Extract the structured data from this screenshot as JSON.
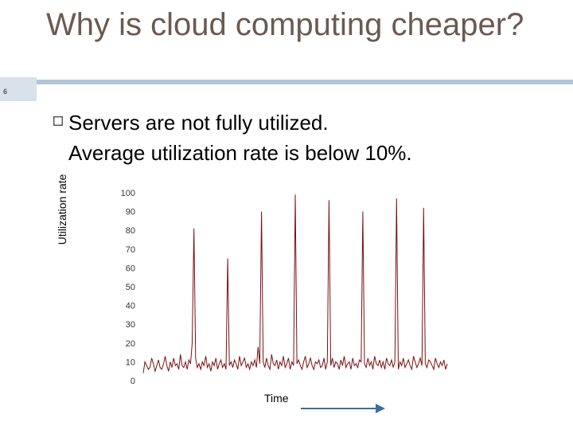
{
  "slide": {
    "number": "6",
    "title": "Why is cloud computing cheaper?",
    "bullet_lines": [
      "Servers are not fully utilized.",
      "Average utilization rate is below 10%."
    ]
  },
  "chart_data": {
    "type": "line",
    "ylabel": "Utilization rate",
    "xlabel": "Time",
    "ylim": [
      0,
      100
    ],
    "yticks": [
      0,
      10,
      20,
      30,
      40,
      50,
      60,
      70,
      80,
      90,
      100
    ],
    "grid": false,
    "series_color": "#7a1010",
    "series": [
      {
        "values": [
          4,
          10,
          8,
          6,
          7,
          12,
          9,
          5,
          8,
          11,
          7,
          6,
          9,
          13,
          8,
          5,
          10,
          7,
          12,
          8,
          9,
          6,
          14,
          8,
          7,
          10,
          6,
          11,
          9,
          20,
          81,
          12,
          7,
          9,
          6,
          10,
          8,
          13,
          7,
          9,
          5,
          10,
          8,
          12,
          6,
          9,
          11,
          7,
          9,
          6,
          65,
          8,
          10,
          7,
          11,
          9,
          6,
          13,
          8,
          10,
          12,
          7,
          9,
          6,
          10,
          8,
          11,
          7,
          18,
          9,
          90,
          10,
          7,
          12,
          8,
          6,
          14,
          9,
          8,
          11,
          6,
          10,
          8,
          13,
          7,
          9,
          12,
          6,
          10,
          8,
          99,
          9,
          11,
          8,
          6,
          10,
          13,
          7,
          9,
          12,
          8,
          6,
          10,
          9,
          11,
          7,
          8,
          12,
          6,
          10,
          96,
          8,
          12,
          7,
          10,
          9,
          6,
          11,
          8,
          13,
          7,
          9,
          10,
          6,
          12,
          8,
          9,
          7,
          11,
          10,
          90,
          9,
          7,
          12,
          8,
          10,
          6,
          13,
          9,
          8,
          11,
          7,
          10,
          6,
          12,
          9,
          8,
          11,
          7,
          10,
          97,
          6,
          10,
          8,
          12,
          7,
          9,
          11,
          8,
          6,
          13,
          10,
          7,
          9,
          12,
          8,
          92,
          9,
          7,
          11,
          10,
          8,
          6,
          12,
          9,
          7,
          10,
          8,
          11,
          6,
          9
        ]
      }
    ]
  }
}
